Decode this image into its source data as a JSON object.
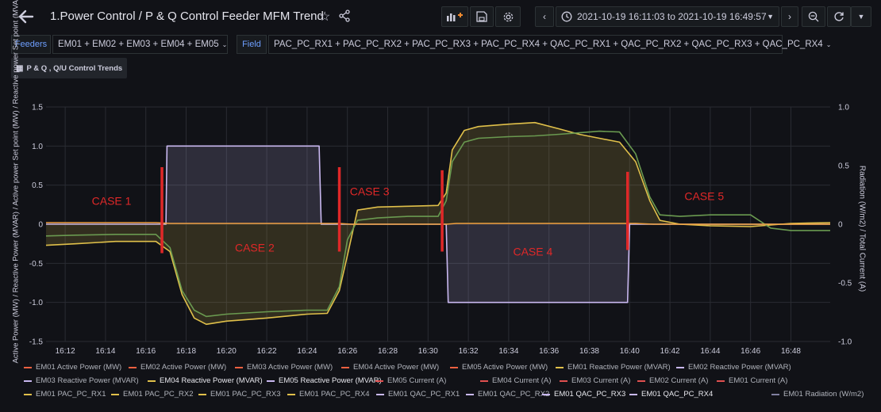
{
  "header": {
    "title": "1.Power Control / P & Q Control Feeder MFM Trend",
    "time_range": "2021-10-19 16:11:03 to 2021-10-19 16:49:57"
  },
  "variables": {
    "feeders_label": "Feeders",
    "feeders_value": "EM01 + EM02 + EM03 + EM04 + EM05",
    "field_label": "Field",
    "field_value": "PAC_PC_RX1 + PAC_PC_RX2 + PAC_PC_RX3 + PAC_PC_RX4 + QAC_PC_RX1 + QAC_PC_RX2 + QAC_PC_RX3 + QAC_PC_RX4"
  },
  "row_header": "P & Q , Q/U Control Trends",
  "colors": {
    "background": "#111217",
    "grid": "#2a2c33",
    "purple": "#c9b8f0",
    "yellow": "#e0c04a",
    "orange": "#f0a040",
    "green": "#6a9a50",
    "red": "#e02828",
    "case_text": "#e02828"
  },
  "chart_data": {
    "type": "line",
    "y_left_label": "Active Power (MW) / Reactive Power (MVAR) / Active power Set point (MW) / Reactive power Set point (MVAR)",
    "y_right_label": "Radiation (W/m2) / Total Current (A)",
    "ylim": [
      -1.5,
      1.5
    ],
    "y_ticks": [
      "1.5",
      "1.0",
      "0.5",
      "0",
      "-0.5",
      "-1.0",
      "-1.5"
    ],
    "y2lim": [
      -1.0,
      1.0
    ],
    "y2_ticks": [
      "1.0",
      "0.5",
      "0",
      "-0.5",
      "-1.0"
    ],
    "x_ticks": [
      "16:12",
      "16:14",
      "16:16",
      "16:18",
      "16:20",
      "16:22",
      "16:24",
      "16:26",
      "16:28",
      "16:30",
      "16:32",
      "16:34",
      "16:36",
      "16:38",
      "16:40",
      "16:42",
      "16:44",
      "16:46",
      "16:48"
    ],
    "x_tick_minutes": [
      12,
      14,
      16,
      18,
      20,
      22,
      24,
      26,
      28,
      30,
      32,
      34,
      36,
      38,
      40,
      42,
      44,
      46,
      48
    ],
    "xlim_minutes": [
      11.05,
      49.95
    ],
    "grid": true,
    "legend_position": "bottom",
    "cases": [
      {
        "label": "CASE 1",
        "x": 14.3,
        "y": 0.25
      },
      {
        "label": "CASE 2",
        "x": 21.4,
        "y": -0.35
      },
      {
        "label": "CASE 3",
        "x": 27.1,
        "y": 0.37
      },
      {
        "label": "CASE 4",
        "x": 35.2,
        "y": -0.4
      },
      {
        "label": "CASE 5",
        "x": 43.7,
        "y": 0.31
      }
    ],
    "markers": [
      {
        "x": 16.8,
        "y_top": 0.73,
        "y_bottom": -0.37
      },
      {
        "x": 25.6,
        "y_top": 0.73,
        "y_bottom": -0.35
      },
      {
        "x": 30.7,
        "y_top": 0.69,
        "y_bottom": -0.35
      },
      {
        "x": 39.9,
        "y_top": 0.67,
        "y_bottom": -0.33
      }
    ],
    "series": [
      {
        "color": "#c9b8f0",
        "fill": true,
        "x": [
          11.05,
          17.0,
          17.05,
          24.6,
          24.7,
          30.9,
          31.0,
          39.9,
          40.0,
          49.95
        ],
        "y": [
          0,
          0,
          1.0,
          1.0,
          0,
          0,
          -1.0,
          -1.0,
          0,
          0
        ]
      },
      {
        "color": "#e0c04a",
        "fill": true,
        "x": [
          11.05,
          12.5,
          14.5,
          16.5,
          17.2,
          17.8,
          18.4,
          19.0,
          20.0,
          22.0,
          24.0,
          25.0,
          25.6,
          26.0,
          26.5,
          27.5,
          29.0,
          30.5,
          30.9,
          31.2,
          31.8,
          32.5,
          34.0,
          35.3,
          36.5,
          37.5,
          38.5,
          39.5,
          40.3,
          41.0,
          41.5,
          42.5,
          44.0,
          46.0,
          48.0,
          49.95
        ],
        "y": [
          -0.27,
          -0.25,
          -0.22,
          -0.22,
          -0.35,
          -0.9,
          -1.2,
          -1.28,
          -1.24,
          -1.2,
          -1.15,
          -1.14,
          -0.85,
          -0.4,
          0.18,
          0.22,
          0.23,
          0.24,
          0.4,
          0.95,
          1.2,
          1.25,
          1.28,
          1.3,
          1.22,
          1.15,
          1.1,
          1.05,
          0.8,
          0.3,
          0.05,
          0.0,
          -0.02,
          -0.03,
          0.01,
          0.02
        ]
      },
      {
        "color": "#6a9a50",
        "fill": false,
        "x": [
          11.05,
          12.5,
          14.5,
          16.5,
          17.2,
          17.8,
          18.4,
          19.0,
          20.0,
          22.0,
          24.0,
          25.0,
          25.6,
          26.0,
          26.5,
          27.5,
          29.0,
          30.5,
          30.9,
          31.2,
          31.8,
          32.5,
          34.0,
          35.3,
          36.5,
          37.5,
          38.5,
          39.5,
          40.3,
          41.0,
          41.5,
          42.5,
          44.0,
          46.0,
          47.0,
          48.0,
          49.95
        ],
        "y": [
          -0.15,
          -0.14,
          -0.13,
          -0.13,
          -0.3,
          -0.85,
          -1.1,
          -1.18,
          -1.15,
          -1.12,
          -1.1,
          -1.1,
          -0.8,
          -0.2,
          0.05,
          0.08,
          0.1,
          0.1,
          0.3,
          0.8,
          1.05,
          1.1,
          1.12,
          1.13,
          1.15,
          1.17,
          1.19,
          1.18,
          0.9,
          0.35,
          0.12,
          0.1,
          0.12,
          0.12,
          -0.05,
          -0.08,
          -0.08
        ]
      },
      {
        "color": "#f0a040",
        "fill": false,
        "x": [
          11.05,
          16.5,
          17.2,
          25.6,
          26.2,
          30.9,
          31.4,
          40.3,
          41.2,
          49.95
        ],
        "y": [
          0.02,
          0.02,
          0.01,
          0.01,
          0.0,
          0.0,
          0.01,
          0.01,
          0.0,
          0.0
        ]
      }
    ]
  },
  "legend": {
    "row1": [
      "EM01 Active Power (MW)",
      "EM02 Active Power (MW)",
      "EM03 Active Power (MW)",
      "EM04 Active Power (MW)",
      "EM05 Active Power (MW)",
      "EM01 Reactive Power (MVAR)",
      "EM02 Reactive Power (MVAR)"
    ],
    "row2": [
      "EM03 Reactive Power (MVAR)",
      "EM04 Reactive Power (MVAR)",
      "EM05 Reactive Power (MVAR)",
      "EM05 Current (A)",
      "EM04 Current (A)",
      "EM03 Current (A)",
      "EM02 Current (A)",
      "EM01 Current (A)"
    ],
    "row3": [
      "EM01 PAC_PC_RX1",
      "EM01 PAC_PC_RX2",
      "EM01 PAC_PC_RX3",
      "EM01 PAC_PC_RX4",
      "EM01 QAC_PC_RX1",
      "EM01 QAC_PC_RX2",
      "EM01 QAC_PC_RX3",
      "EM01 QAC_PC_RX4",
      "EM01 Radiation (W/m2)"
    ]
  }
}
